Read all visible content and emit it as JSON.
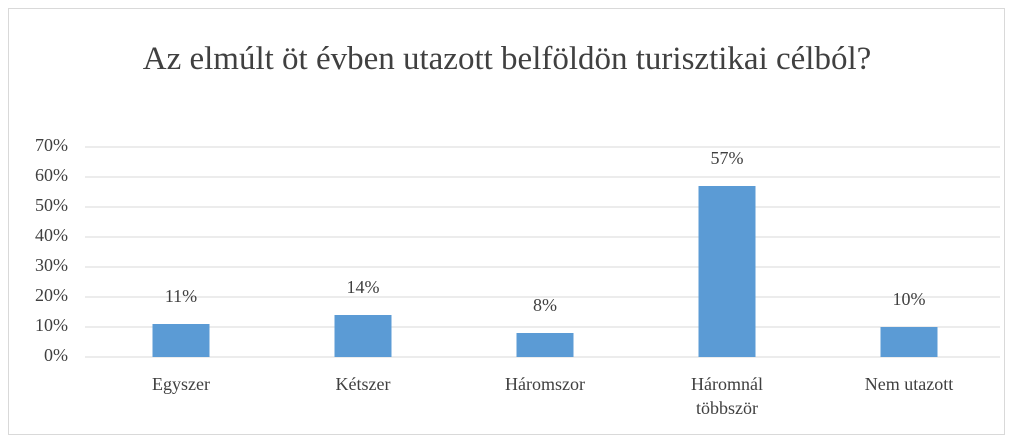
{
  "chart_data": {
    "type": "bar",
    "title": "Az elmúlt öt évben utazott belföldön turisztikai célból?",
    "categories": [
      "Egyszer",
      "Kétszer",
      "Háromszor",
      "Háromnál többször",
      "Nem utazott"
    ],
    "values": [
      11,
      14,
      8,
      57,
      10
    ],
    "value_labels": [
      "11%",
      "14%",
      "8%",
      "57%",
      "10%"
    ],
    "color": "#5b9bd5",
    "ylim": [
      0,
      70
    ],
    "yticks": [
      {
        "value": 0,
        "label": "0%"
      },
      {
        "value": 10,
        "label": "10%"
      },
      {
        "value": 20,
        "label": "20%"
      },
      {
        "value": 30,
        "label": "30%"
      },
      {
        "value": 40,
        "label": "40%"
      },
      {
        "value": 50,
        "label": "50%"
      },
      {
        "value": 60,
        "label": "60%"
      },
      {
        "value": 70,
        "label": "70%"
      }
    ],
    "grid": true
  }
}
